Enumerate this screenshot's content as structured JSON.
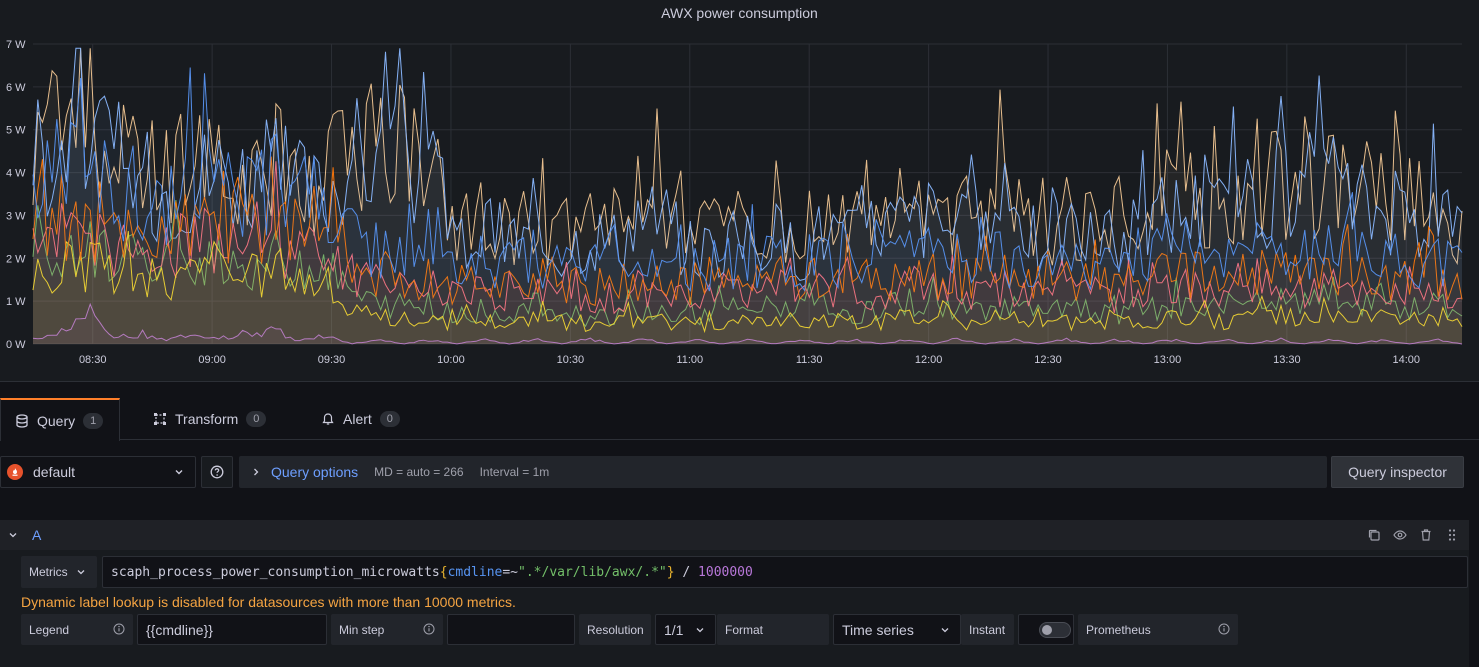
{
  "panel": {
    "title": "AWX power consumption"
  },
  "chart_data": {
    "type": "line",
    "title": "AWX power consumption",
    "y_ticks": [
      "0 W",
      "1 W",
      "2 W",
      "3 W",
      "4 W",
      "5 W",
      "6 W",
      "7 W"
    ],
    "ylim": [
      0,
      7
    ],
    "x_ticks": [
      "08:30",
      "09:00",
      "09:30",
      "10:00",
      "10:30",
      "11:00",
      "11:30",
      "12:00",
      "12:30",
      "13:00",
      "13:30",
      "14:00"
    ],
    "x_minutes_from_0800": [
      30,
      60,
      90,
      120,
      150,
      180,
      210,
      240,
      270,
      300,
      330,
      360
    ],
    "xlim_minutes": [
      15,
      374
    ],
    "grid": true,
    "series": [
      {
        "color": "#f2c794",
        "approx_values": [
          4.6,
          5.2,
          5.9,
          4.4,
          4.2,
          3.9,
          4.1,
          4.5,
          4.2,
          4.3,
          4.0,
          3.6,
          4.8,
          4.5,
          4.3,
          4.4,
          2.6,
          2.9,
          2.8,
          2.6,
          2.5,
          2.9,
          2.7,
          3.4,
          3.0,
          2.5,
          2.6,
          2.7,
          2.8,
          2.5,
          3.0,
          2.7,
          3.2,
          3.1,
          3.3,
          2.9,
          3.0,
          3.6,
          2.4,
          3.0,
          2.8,
          2.6,
          3.2,
          3.4,
          3.5,
          3.3,
          3.6,
          3.7,
          3.5,
          4.0,
          3.6,
          3.4,
          3.3,
          3.5,
          2.6
        ]
      },
      {
        "color": "#8ab8ff",
        "approx_values": [
          4.3,
          4.8,
          5.3,
          4.0,
          3.8,
          3.6,
          3.8,
          4.1,
          3.9,
          4.0,
          3.7,
          3.4,
          4.4,
          4.2,
          4.0,
          4.1,
          2.3,
          2.6,
          2.5,
          2.3,
          2.2,
          2.6,
          2.4,
          3.1,
          2.7,
          2.2,
          2.3,
          2.4,
          2.5,
          2.2,
          2.7,
          2.4,
          2.9,
          2.8,
          3.0,
          2.6,
          2.7,
          3.3,
          2.1,
          2.7,
          2.5,
          2.3,
          2.9,
          3.1,
          3.2,
          3.0,
          3.3,
          3.4,
          3.2,
          3.7,
          3.3,
          3.1,
          3.0,
          3.2,
          2.3
        ]
      },
      {
        "color": "#73bf69",
        "approx_values": [
          2.0,
          2.4,
          2.2,
          2.0,
          1.9,
          1.8,
          2.0,
          2.1,
          1.9,
          2.0,
          1.9,
          1.8,
          1.2,
          0.9,
          0.9,
          0.8,
          0.7,
          0.8,
          0.7,
          0.9,
          0.8,
          0.6,
          0.7,
          0.8,
          0.7,
          0.6,
          0.8,
          0.7,
          0.9,
          0.8,
          0.9,
          0.7,
          0.8,
          1.0,
          0.9,
          0.8,
          0.8,
          0.9,
          0.7,
          0.8,
          0.8,
          0.7,
          0.8,
          0.9,
          0.9,
          0.8,
          0.9,
          1.0,
          0.9,
          1.0,
          0.9,
          0.9,
          0.8,
          0.9,
          0.7
        ]
      },
      {
        "color": "#ff7383",
        "approx_values": [
          2.3,
          2.7,
          2.6,
          2.4,
          2.3,
          2.2,
          2.4,
          2.5,
          2.3,
          2.4,
          2.3,
          2.2,
          1.6,
          1.3,
          1.3,
          1.2,
          1.1,
          1.2,
          1.1,
          1.3,
          1.2,
          1.0,
          1.1,
          1.2,
          1.1,
          1.0,
          1.2,
          1.1,
          1.3,
          1.2,
          1.3,
          1.1,
          1.2,
          1.4,
          1.3,
          1.2,
          1.2,
          1.3,
          1.1,
          1.2,
          1.2,
          1.1,
          1.2,
          1.3,
          1.3,
          1.2,
          1.3,
          1.4,
          1.3,
          1.4,
          1.3,
          1.3,
          1.2,
          1.3,
          1.1
        ]
      },
      {
        "color": "#b877d9",
        "approx_values": [
          0.1,
          0.2,
          0.9,
          0.1,
          0.2,
          0.1,
          0.2,
          0.1,
          0.2,
          0.3,
          0.1,
          0.2,
          0.0,
          0.1,
          0.0,
          0.1,
          0.0,
          0.1,
          0.0,
          0.1,
          0.0,
          0.1,
          0.0,
          0.1,
          0.0,
          0.1,
          0.0,
          0.1,
          0.0,
          0.1,
          0.0,
          0.1,
          0.0,
          0.1,
          0.0,
          0.1,
          0.0,
          0.1,
          0.0,
          0.1,
          0.0,
          0.1,
          0.0,
          0.1,
          0.0,
          0.1,
          0.0,
          0.1,
          0.0,
          0.1,
          0.0,
          0.1,
          0.0,
          0.1,
          0.0
        ]
      },
      {
        "color": "#fade2a",
        "approx_values": [
          1.6,
          1.9,
          1.8,
          1.7,
          1.6,
          1.5,
          1.7,
          1.8,
          1.6,
          1.7,
          1.6,
          1.5,
          0.8,
          0.6,
          0.6,
          0.5,
          0.5,
          0.6,
          0.5,
          0.6,
          0.5,
          0.4,
          0.5,
          0.6,
          0.5,
          0.4,
          0.5,
          0.5,
          0.6,
          0.5,
          0.6,
          0.5,
          0.5,
          0.7,
          0.6,
          0.5,
          0.5,
          0.6,
          0.5,
          0.5,
          0.5,
          0.5,
          0.5,
          0.6,
          0.6,
          0.5,
          0.6,
          0.7,
          0.6,
          0.7,
          0.6,
          0.6,
          0.5,
          0.6,
          0.5
        ]
      },
      {
        "color": "#ff780a",
        "approx_values": [
          2.6,
          3.0,
          2.9,
          2.7,
          2.6,
          2.5,
          2.7,
          2.8,
          2.6,
          2.7,
          2.6,
          2.5,
          1.9,
          1.6,
          1.6,
          1.5,
          1.4,
          1.5,
          1.4,
          1.6,
          1.5,
          1.3,
          1.4,
          1.5,
          1.4,
          1.3,
          1.5,
          1.4,
          1.6,
          1.5,
          1.6,
          1.4,
          1.5,
          1.7,
          1.6,
          1.5,
          1.5,
          1.6,
          1.4,
          1.5,
          1.5,
          1.4,
          1.5,
          1.6,
          1.6,
          1.5,
          1.6,
          1.7,
          1.6,
          1.7,
          1.6,
          1.6,
          1.5,
          1.6,
          1.4
        ]
      },
      {
        "color": "#5794f2",
        "approx_values": [
          3.6,
          4.0,
          3.9,
          3.6,
          3.5,
          3.4,
          3.6,
          3.8,
          3.6,
          3.7,
          3.5,
          3.2,
          2.4,
          2.1,
          2.1,
          2.0,
          1.8,
          1.9,
          1.8,
          2.0,
          1.9,
          1.7,
          1.8,
          1.9,
          1.8,
          1.7,
          1.9,
          1.8,
          2.0,
          1.9,
          2.0,
          1.8,
          1.9,
          2.1,
          2.0,
          1.9,
          1.9,
          2.0,
          1.8,
          1.9,
          1.9,
          1.8,
          1.9,
          2.0,
          2.0,
          1.9,
          2.0,
          2.1,
          2.0,
          2.1,
          2.0,
          2.0,
          1.9,
          2.0,
          1.8
        ]
      }
    ]
  },
  "tabs": [
    {
      "label": "Query",
      "count": "1"
    },
    {
      "label": "Transform",
      "count": "0"
    },
    {
      "label": "Alert",
      "count": "0"
    }
  ],
  "datasource": {
    "name": "default"
  },
  "query_options": {
    "title": "Query options",
    "md": "MD = auto = 266",
    "interval": "Interval = 1m"
  },
  "query_inspector": {
    "label": "Query inspector"
  },
  "query_a": {
    "ref_id": "A",
    "metrics_label": "Metrics",
    "expr": {
      "metric": "scaph_process_power_consumption_microwatts",
      "open": "{",
      "label": "cmdline",
      "op": "=~",
      "value": "\".*/var/lib/awx/.*\"",
      "close": "}",
      "div": " / ",
      "num": "1000000"
    },
    "warning": "Dynamic label lookup is disabled for datasources with more than 10000 metrics.",
    "legend_label": "Legend",
    "legend_value": "{{cmdline}}",
    "min_step_label": "Min step",
    "min_step_value": "",
    "resolution_label": "Resolution",
    "resolution_value": "1/1",
    "format_label": "Format",
    "format_value": "Time series",
    "instant_label": "Instant",
    "prometheus_label": "Prometheus"
  }
}
